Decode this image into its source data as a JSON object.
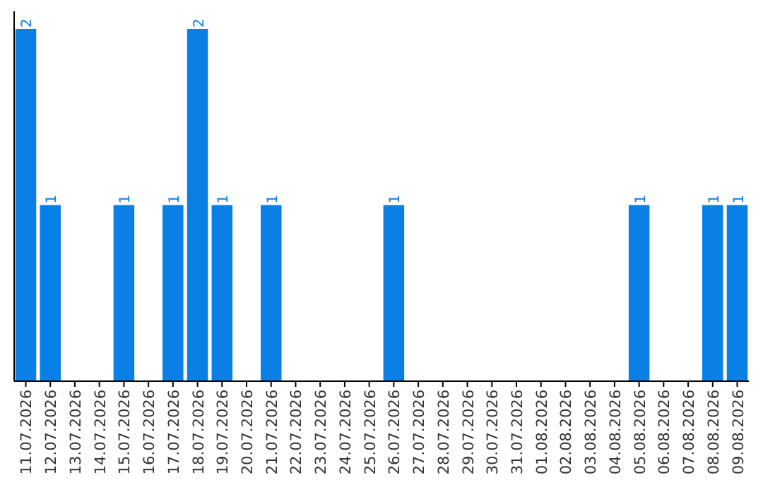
{
  "chart_data": {
    "type": "bar",
    "categories": [
      "11.07.2026",
      "12.07.2026",
      "13.07.2026",
      "14.07.2026",
      "15.07.2026",
      "16.07.2026",
      "17.07.2026",
      "18.07.2026",
      "19.07.2026",
      "20.07.2026",
      "21.07.2026",
      "22.07.2026",
      "23.07.2026",
      "24.07.2026",
      "25.07.2026",
      "26.07.2026",
      "27.07.2026",
      "28.07.2026",
      "29.07.2026",
      "30.07.2026",
      "31.07.2026",
      "01.08.2026",
      "02.08.2026",
      "03.08.2026",
      "04.08.2026",
      "05.08.2026",
      "06.08.2026",
      "07.08.2026",
      "08.08.2026",
      "09.08.2026"
    ],
    "values": [
      2,
      1,
      null,
      null,
      1,
      null,
      1,
      2,
      1,
      null,
      1,
      null,
      null,
      null,
      null,
      1,
      null,
      null,
      null,
      null,
      null,
      null,
      null,
      null,
      null,
      1,
      null,
      null,
      1,
      1
    ],
    "data_labels": true,
    "color": "#0a7fe6",
    "ylim": [
      0,
      2.1
    ],
    "tick_labels": "x"
  }
}
